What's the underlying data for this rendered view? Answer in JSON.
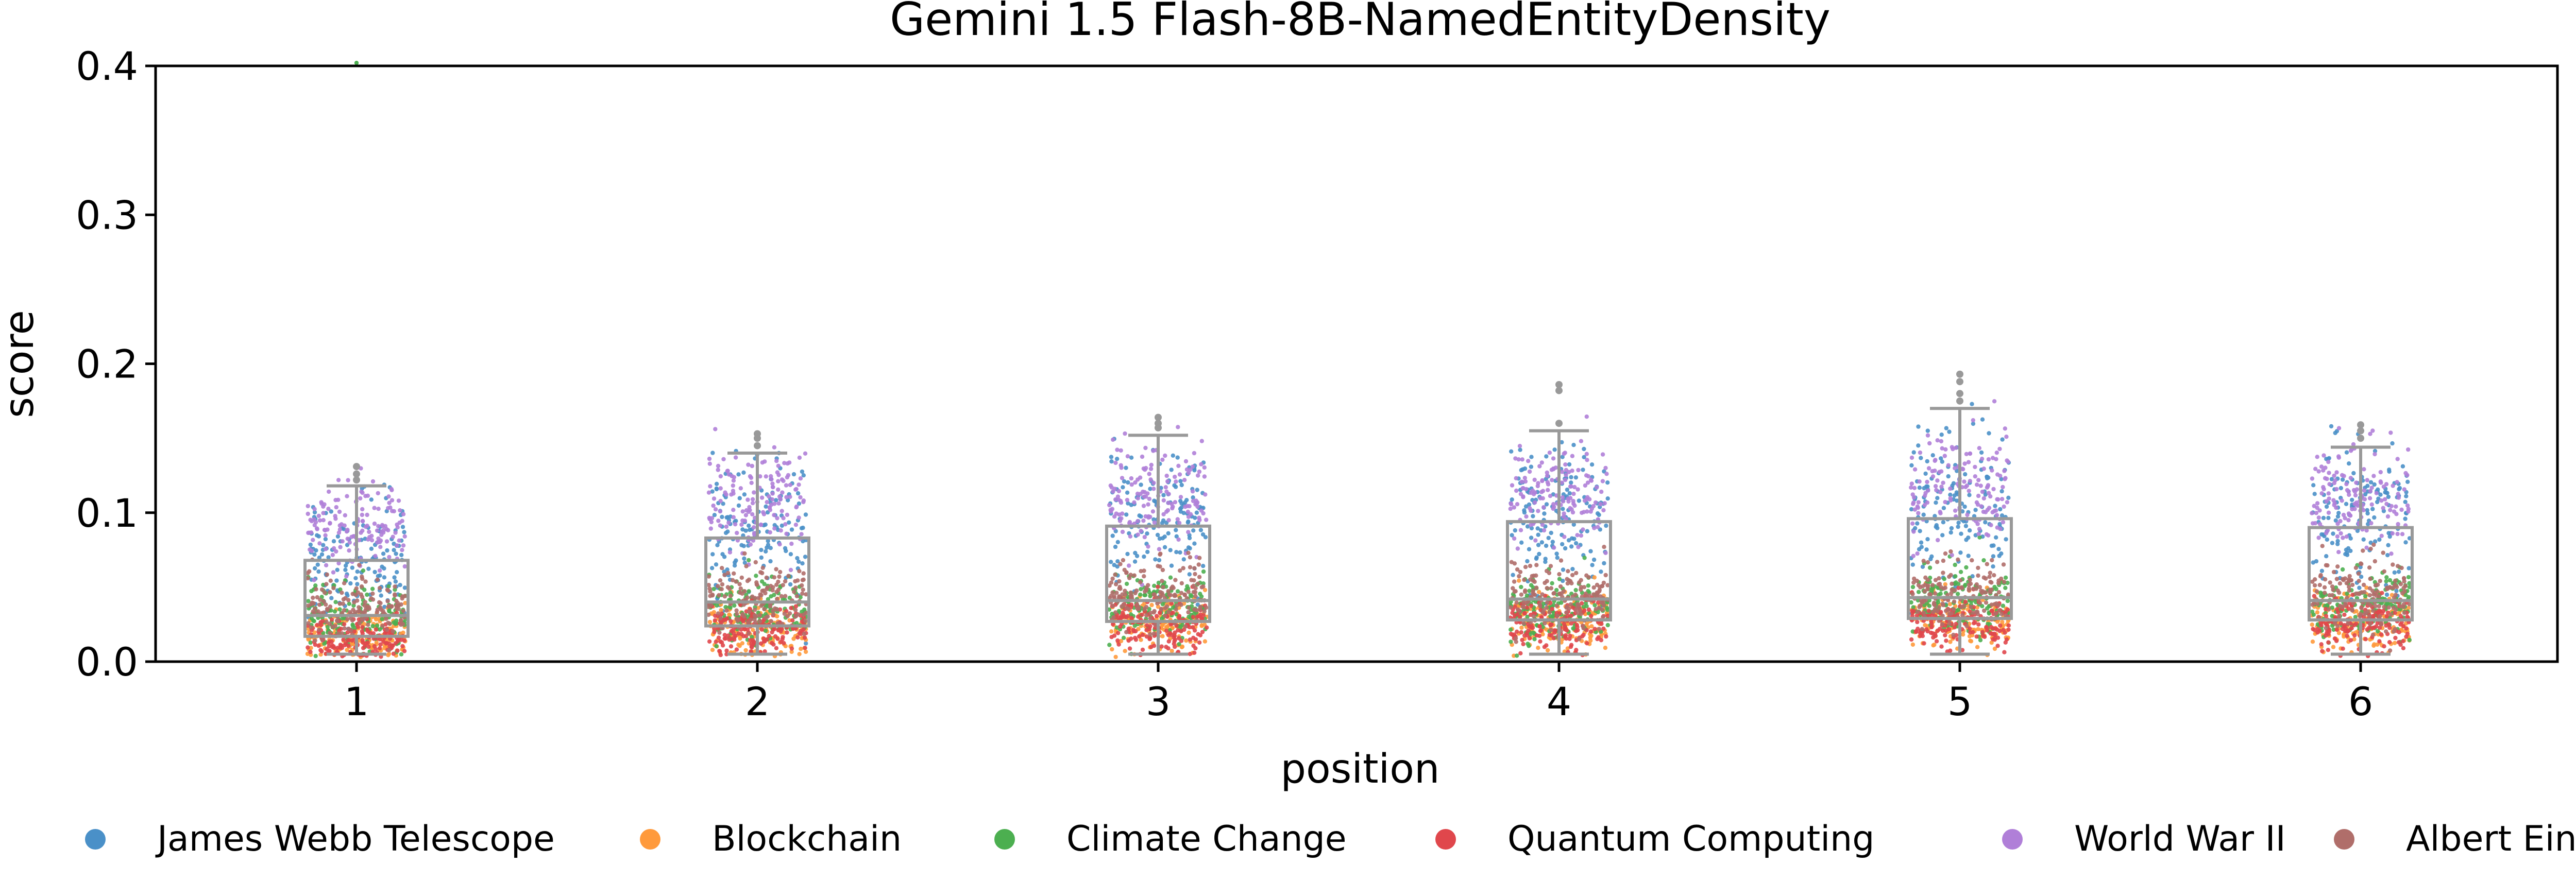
{
  "chart_data": {
    "type": "box+strip",
    "title": "Gemini 1.5 Flash-8B-NamedEntityDensity",
    "xlabel": "position",
    "ylabel": "score",
    "ylim": [
      0.0,
      0.4
    ],
    "yticks": [
      "0.0",
      "0.1",
      "0.2",
      "0.3",
      "0.4"
    ],
    "categories": [
      "1",
      "2",
      "3",
      "4",
      "5",
      "6"
    ],
    "grid": false,
    "legend_position": "bottom",
    "box_color": "#999999",
    "boxes": [
      {
        "position": "1",
        "whisker_low": 0.005,
        "q1": 0.017,
        "median": 0.031,
        "q3": 0.068,
        "whisker_high": 0.118,
        "outliers": [
          0.122,
          0.126,
          0.131
        ]
      },
      {
        "position": "2",
        "whisker_low": 0.005,
        "q1": 0.024,
        "median": 0.04,
        "q3": 0.083,
        "whisker_high": 0.14,
        "outliers": [
          0.145,
          0.15,
          0.153
        ]
      },
      {
        "position": "3",
        "whisker_low": 0.005,
        "q1": 0.027,
        "median": 0.041,
        "q3": 0.091,
        "whisker_high": 0.152,
        "outliers": [
          0.157,
          0.16,
          0.164
        ]
      },
      {
        "position": "4",
        "whisker_low": 0.005,
        "q1": 0.028,
        "median": 0.042,
        "q3": 0.094,
        "whisker_high": 0.155,
        "outliers": [
          0.16,
          0.182,
          0.186
        ]
      },
      {
        "position": "5",
        "whisker_low": 0.005,
        "q1": 0.029,
        "median": 0.043,
        "q3": 0.096,
        "whisker_high": 0.17,
        "outliers": [
          0.175,
          0.18,
          0.188,
          0.193
        ]
      },
      {
        "position": "6",
        "whisker_low": 0.005,
        "q1": 0.028,
        "median": 0.041,
        "q3": 0.09,
        "whisker_high": 0.144,
        "outliers": [
          0.15,
          0.155,
          0.159
        ]
      }
    ],
    "series": [
      {
        "name": "James Webb Telescope",
        "color": "#4a90c8",
        "means": [
          0.065,
          0.085,
          0.095,
          0.1,
          0.105,
          0.1
        ],
        "spread": [
          0.022,
          0.025,
          0.025,
          0.025,
          0.027,
          0.025
        ]
      },
      {
        "name": "Blockchain",
        "color": "#ff9a3c",
        "means": [
          0.018,
          0.022,
          0.025,
          0.026,
          0.027,
          0.026
        ],
        "spread": [
          0.008,
          0.01,
          0.01,
          0.01,
          0.01,
          0.01
        ]
      },
      {
        "name": "Climate Change",
        "color": "#4caf50",
        "means": [
          0.03,
          0.036,
          0.038,
          0.038,
          0.04,
          0.038
        ],
        "spread": [
          0.01,
          0.011,
          0.011,
          0.011,
          0.011,
          0.011
        ]
      },
      {
        "name": "Quantum Computing",
        "color": "#e0474c",
        "means": [
          0.014,
          0.02,
          0.024,
          0.025,
          0.026,
          0.025
        ],
        "spread": [
          0.007,
          0.008,
          0.009,
          0.009,
          0.009,
          0.009
        ]
      },
      {
        "name": "World War II",
        "color": "#b07fd8",
        "means": [
          0.09,
          0.105,
          0.11,
          0.112,
          0.115,
          0.112
        ],
        "spread": [
          0.015,
          0.018,
          0.018,
          0.018,
          0.02,
          0.018
        ]
      },
      {
        "name": "Albert Einstein",
        "color": "#b06e6a",
        "means": [
          0.035,
          0.042,
          0.045,
          0.045,
          0.046,
          0.045
        ],
        "spread": [
          0.011,
          0.012,
          0.012,
          0.012,
          0.012,
          0.012
        ]
      }
    ],
    "extra_points": [
      {
        "series": "Climate Change",
        "position": "1",
        "value": 0.402
      }
    ]
  }
}
